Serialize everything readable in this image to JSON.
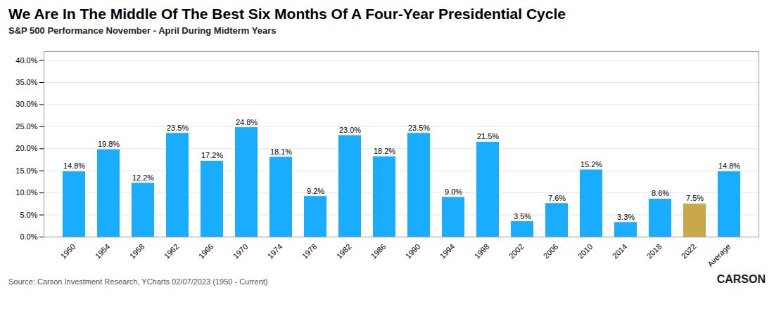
{
  "chart_data": {
    "type": "bar",
    "title": "We Are In The Middle Of The Best Six Months Of A Four-Year Presidential Cycle",
    "subtitle": "S&P 500 Performance November - April During Midterm Years",
    "source": "Source: Carson Investment Research, YCharts 02/07/2023 (1950 - Current)",
    "annotations": [
      "CARSON"
    ],
    "categories": [
      "1950",
      "1954",
      "1958",
      "1962",
      "1966",
      "1970",
      "1974",
      "1978",
      "1982",
      "1986",
      "1990",
      "1994",
      "1998",
      "2002",
      "2006",
      "2010",
      "2014",
      "2018",
      "2022",
      "Average"
    ],
    "values": [
      14.8,
      19.8,
      12.2,
      23.5,
      17.2,
      24.8,
      18.1,
      9.2,
      23.0,
      18.2,
      23.5,
      9.0,
      21.5,
      3.5,
      7.6,
      15.2,
      3.3,
      8.6,
      7.5,
      14.8
    ],
    "value_labels": [
      "14.8%",
      "19.8%",
      "12.2%",
      "23.5%",
      "17.2%",
      "24.8%",
      "18.1%",
      "9.2%",
      "23.0%",
      "18.2%",
      "23.5%",
      "9.0%",
      "21.5%",
      "3.5%",
      "7.6%",
      "15.2%",
      "3.3%",
      "8.6%",
      "7.5%",
      "14.8%"
    ],
    "colors": [
      "#1AACFF",
      "#1AACFF",
      "#1AACFF",
      "#1AACFF",
      "#1AACFF",
      "#1AACFF",
      "#1AACFF",
      "#1AACFF",
      "#1AACFF",
      "#1AACFF",
      "#1AACFF",
      "#1AACFF",
      "#1AACFF",
      "#1AACFF",
      "#1AACFF",
      "#1AACFF",
      "#1AACFF",
      "#1AACFF",
      "#C9A84C",
      "#1AACFF"
    ],
    "data_labels": true,
    "ylim": [
      0,
      42
    ],
    "yticks": [
      {
        "value": 0,
        "label": "0.0%"
      },
      {
        "value": 5,
        "label": "5.0%"
      },
      {
        "value": 10,
        "label": "10.0%"
      },
      {
        "value": 15,
        "label": "15.0%"
      },
      {
        "value": 20,
        "label": "20.0%"
      },
      {
        "value": 25,
        "label": "25.0%"
      },
      {
        "value": 30,
        "label": "30.0%"
      },
      {
        "value": 35,
        "label": "35.0%"
      },
      {
        "value": 40,
        "label": "40.0%"
      }
    ],
    "grid": true
  }
}
